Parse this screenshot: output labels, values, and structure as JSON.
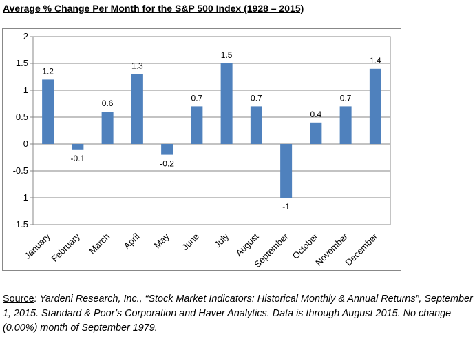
{
  "title": "Average % Change Per Month for the S&P 500 Index (1928 – 2015)",
  "source": {
    "label": "Source",
    "text": ": Yardeni Research, Inc., “Stock Market Indicators: Historical Monthly & Annual Returns”, September 1, 2015.  Standard & Poor’s Corporation and Haver Analytics.  Data is through August 2015.  No change (0.00%) month of September 1979."
  },
  "chart_data": {
    "type": "bar",
    "categories": [
      "January",
      "February",
      "March",
      "April",
      "May",
      "June",
      "July",
      "August",
      "September",
      "October",
      "November",
      "December"
    ],
    "values": [
      1.2,
      -0.1,
      0.6,
      1.3,
      -0.2,
      0.7,
      1.5,
      0.7,
      -1,
      0.4,
      0.7,
      1.4
    ],
    "data_labels": [
      "1.2",
      "-0.1",
      "0.6",
      "1.3",
      "-0.2",
      "0.7",
      "1.5",
      "0.7",
      "-1",
      "0.4",
      "0.7",
      "1.4"
    ],
    "yticks": [
      "2",
      "1.5",
      "1",
      "0.5",
      "0",
      "-0.5",
      "-1",
      "-1.5"
    ],
    "ylim": [
      -1.5,
      2
    ],
    "bar_color": "#4f81bd",
    "grid": true,
    "legend": "none"
  }
}
